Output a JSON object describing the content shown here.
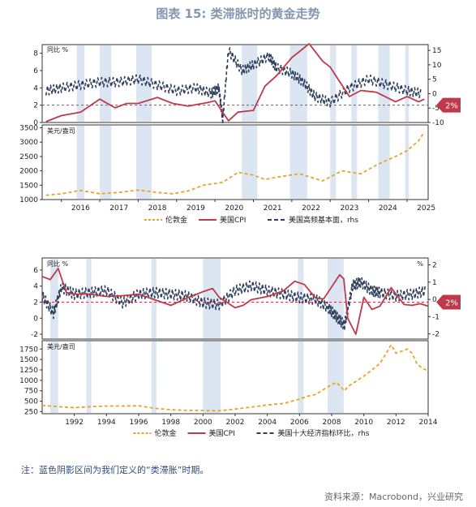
{
  "title": "图表 15: 类滞胀时的黄金走势",
  "note": "注：蓝色阴影区间为我们定义的“类滞胀”时期。",
  "source": "资料来源：Macrobond，兴业研究",
  "colors": {
    "gold": "#E8A32C",
    "cpi": "#C0394B",
    "macro": "#2E3F5C",
    "shade": "#DCE6F2",
    "ref": "#C0394B",
    "title": "#8497B0"
  },
  "chart_data": [
    {
      "type": "line",
      "panel": "2016-2025 US CPI vs PMI",
      "left_label": "同比 %",
      "ylim_left": [
        0,
        9
      ],
      "yticks_left": [
        0,
        2,
        4,
        6,
        8
      ],
      "ylim_right": [
        -10,
        17
      ],
      "yticks_right": [
        -10,
        -5,
        0,
        5,
        10,
        15
      ],
      "reference_line": 2,
      "reference_label": "2%",
      "xlim": [
        2015.5,
        2025.55
      ],
      "shaded_periods": [
        [
          2016.4,
          2016.6
        ],
        [
          2017.0,
          2017.3
        ],
        [
          2017.95,
          2018.35
        ],
        [
          2020.7,
          2021.1
        ],
        [
          2021.95,
          2022.4
        ],
        [
          2023.0,
          2023.15
        ],
        [
          2023.55,
          2023.7
        ],
        [
          2024.25,
          2024.55
        ],
        [
          2024.95,
          2025.05
        ]
      ],
      "series": [
        {
          "name": "美国CPI",
          "axis": "left",
          "x": [
            2015.6,
            2016.0,
            2016.5,
            2017.0,
            2017.4,
            2017.7,
            2018.0,
            2018.5,
            2018.9,
            2019.3,
            2019.8,
            2020.0,
            2020.35,
            2020.6,
            2021.0,
            2021.3,
            2021.6,
            2022.0,
            2022.45,
            2022.8,
            2023.0,
            2023.5,
            2023.8,
            2024.2,
            2024.7,
            2025.0,
            2025.3,
            2025.45
          ],
          "values": [
            0.1,
            0.8,
            1.2,
            2.7,
            1.7,
            2.2,
            2.2,
            2.9,
            2.2,
            1.9,
            2.3,
            2.5,
            0.2,
            1.2,
            1.4,
            4.2,
            5.4,
            7.5,
            9.1,
            7.1,
            6.4,
            3.0,
            3.7,
            3.5,
            2.4,
            3.0,
            2.4,
            2.7
          ]
        },
        {
          "name": "美国高频基本面",
          "axis": "right",
          "x": [
            2015.6,
            2016.0,
            2016.5,
            2017.0,
            2017.5,
            2018.0,
            2018.5,
            2019.0,
            2019.5,
            2019.9,
            2020.1,
            2020.2,
            2020.35,
            2020.7,
            2021.0,
            2021.4,
            2021.6,
            2022.0,
            2022.3,
            2022.6,
            2023.0,
            2023.5,
            2024.0,
            2024.5,
            2025.0,
            2025.4
          ],
          "values": [
            1,
            2,
            3,
            4,
            4,
            5,
            3,
            1,
            2,
            0,
            2,
            -9,
            15,
            8,
            10,
            13,
            9,
            7,
            4,
            -1,
            -3,
            2,
            5,
            3,
            1,
            0
          ]
        }
      ]
    },
    {
      "type": "line",
      "panel": "2016-2025 London gold",
      "left_label": "美元/盎司",
      "ylim": [
        1000,
        3600
      ],
      "yticks": [
        1000,
        1500,
        2000,
        2500,
        3000,
        3500
      ],
      "xlim": [
        2015.5,
        2025.55
      ],
      "x_ticks": [
        "2016",
        "2017",
        "2018",
        "2019",
        "2020",
        "2021",
        "2022",
        "2023",
        "2024",
        "2025"
      ],
      "legend": [
        "伦敦金",
        "美国CPI",
        "美国高频基本面，rhs"
      ],
      "series": [
        {
          "name": "伦敦金",
          "x": [
            2015.6,
            2016.0,
            2016.5,
            2017.0,
            2017.5,
            2018.0,
            2018.5,
            2018.9,
            2019.3,
            2019.7,
            2020.2,
            2020.6,
            2021.0,
            2021.3,
            2021.7,
            2022.2,
            2022.8,
            2023.3,
            2023.8,
            2024.2,
            2024.7,
            2025.0,
            2025.3,
            2025.45
          ],
          "values": [
            1150,
            1200,
            1320,
            1200,
            1250,
            1330,
            1250,
            1200,
            1300,
            1500,
            1600,
            1950,
            1850,
            1700,
            1800,
            1900,
            1650,
            2000,
            1900,
            2200,
            2500,
            2700,
            3050,
            3350
          ]
        }
      ]
    },
    {
      "type": "line",
      "panel": "1990-2014 US CPI vs leading index",
      "left_label": "同比 %",
      "right_label": "%",
      "ylim_left": [
        -2.6,
        7.5
      ],
      "yticks_left": [
        -2,
        0,
        2,
        4,
        6
      ],
      "ylim_right": [
        -2.3,
        2.4
      ],
      "yticks_right": [
        -2.0,
        -1.0,
        0.0,
        1.0,
        2.0
      ],
      "reference_line": 2,
      "reference_label": "2%",
      "xlim": [
        1990.0,
        2014.0
      ],
      "shaded_periods": [
        [
          1990.5,
          1991.0
        ],
        [
          1992.75,
          1993.05
        ],
        [
          1996.8,
          1997.1
        ],
        [
          2000.0,
          2001.1
        ],
        [
          2005.9,
          2006.25
        ],
        [
          2007.75,
          2008.75
        ]
      ],
      "series": [
        {
          "name": "美国CPI",
          "axis": "left",
          "x": [
            1990.0,
            1990.5,
            1991.0,
            1991.5,
            1992.0,
            1993.0,
            1994.0,
            1995.0,
            1996.0,
            1997.0,
            1998.0,
            1999.0,
            2000.0,
            2000.6,
            2001.0,
            2002.0,
            2002.5,
            2003.0,
            2004.0,
            2005.0,
            2005.7,
            2006.3,
            2007.0,
            2007.5,
            2008.5,
            2008.75,
            2009.0,
            2009.5,
            2010.0,
            2010.5,
            2011.0,
            2011.7,
            2012.0,
            2012.5,
            2013.0,
            2013.5,
            2014.0
          ],
          "values": [
            5.2,
            4.8,
            6.2,
            3.2,
            3.0,
            3.0,
            2.7,
            2.8,
            3.0,
            2.3,
            1.6,
            2.5,
            3.3,
            3.7,
            2.6,
            1.3,
            1.6,
            2.3,
            2.7,
            3.4,
            4.6,
            4.2,
            2.5,
            2.4,
            5.4,
            4.9,
            0.0,
            -2.0,
            2.6,
            1.1,
            1.5,
            3.8,
            3.0,
            1.7,
            1.6,
            1.8,
            1.5
          ]
        },
        {
          "name": "美国十大经济指标环比",
          "axis": "right",
          "x": [
            1990.0,
            1990.7,
            1991.2,
            1992.0,
            1993.0,
            1994.0,
            1995.0,
            1996.0,
            1997.0,
            1998.0,
            1999.0,
            2000.0,
            2001.0,
            2002.0,
            2003.0,
            2004.0,
            2005.0,
            2006.0,
            2007.0,
            2007.8,
            2008.3,
            2008.8,
            2009.3,
            2009.8,
            2010.5,
            2011.0,
            2012.0,
            2013.0,
            2013.9
          ],
          "values": [
            0.2,
            -0.8,
            0.7,
            0.3,
            0.4,
            0.5,
            -0.2,
            0.3,
            0.4,
            0.3,
            0.2,
            -0.2,
            -0.3,
            0.5,
            0.8,
            0.5,
            0.3,
            0.1,
            0.0,
            -0.5,
            -1.0,
            -1.5,
            0.8,
            1.0,
            0.5,
            0.4,
            0.2,
            0.3,
            0.5
          ]
        }
      ]
    },
    {
      "type": "line",
      "panel": "1990-2014 London gold",
      "left_label": "美元/盎司",
      "ylim": [
        200,
        1950
      ],
      "yticks": [
        250,
        500,
        750,
        1000,
        1250,
        1500,
        1750
      ],
      "xlim": [
        1990.0,
        2014.0
      ],
      "x_ticks": [
        "1992",
        "1994",
        "1996",
        "1998",
        "2000",
        "2002",
        "2004",
        "2006",
        "2008",
        "2010",
        "2012",
        "2014"
      ],
      "legend": [
        "伦敦金",
        "美国CPI",
        "美国十大经济指标环比，rhs"
      ],
      "series": [
        {
          "name": "伦敦金",
          "x": [
            1990.0,
            1991.0,
            1992.0,
            1993.0,
            1994.0,
            1995.0,
            1996.0,
            1997.0,
            1998.0,
            1999.0,
            2000.0,
            2001.0,
            2002.0,
            2003.0,
            2004.0,
            2005.0,
            2006.0,
            2006.5,
            2007.0,
            2008.0,
            2008.3,
            2008.8,
            2009.0,
            2010.0,
            2011.0,
            2011.7,
            2012.0,
            2012.7,
            2013.0,
            2013.3,
            2013.6,
            2014.0
          ],
          "values": [
            400,
            370,
            345,
            370,
            385,
            385,
            390,
            330,
            295,
            280,
            280,
            270,
            310,
            360,
            410,
            445,
            550,
            620,
            660,
            900,
            950,
            750,
            850,
            1100,
            1400,
            1850,
            1650,
            1750,
            1650,
            1400,
            1300,
            1220
          ]
        }
      ]
    }
  ]
}
